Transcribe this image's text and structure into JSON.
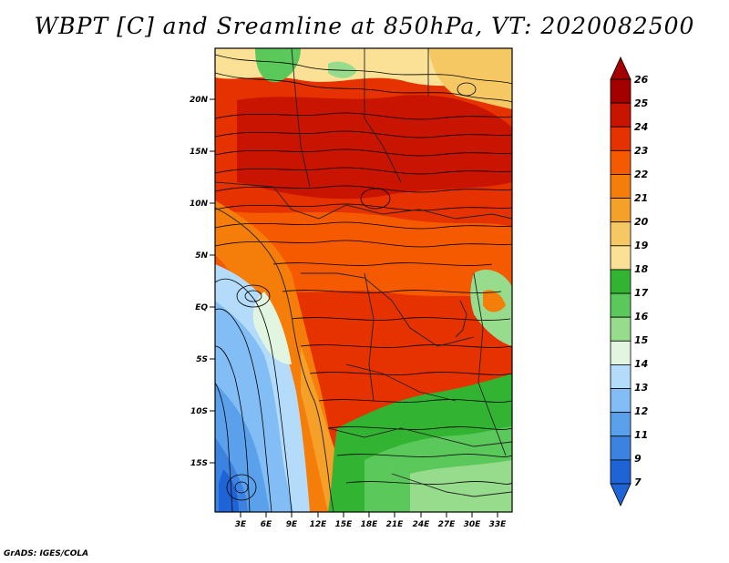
{
  "title": "WBPT [C] and Sreamline at 850hPa, VT: 2020082500",
  "footer": "GrADS: IGES/COLA",
  "map": {
    "lat_labels": [
      "20N",
      "15N",
      "10N",
      "5N",
      "EQ",
      "5S",
      "10S",
      "15S"
    ],
    "lon_labels": [
      "3E",
      "6E",
      "9E",
      "12E",
      "15E",
      "18E",
      "21E",
      "24E",
      "27E",
      "30E",
      "33E"
    ]
  },
  "colorbar": {
    "levels": [
      "26",
      "25",
      "24",
      "23",
      "22",
      "21",
      "20",
      "19",
      "18",
      "17",
      "16",
      "15",
      "14",
      "13",
      "12",
      "11",
      "9",
      "7"
    ],
    "colors": [
      "#a50000",
      "#c81400",
      "#e63200",
      "#f55a00",
      "#f57d0a",
      "#f5a028",
      "#f5c864",
      "#fae196",
      "#32b432",
      "#5ac85a",
      "#96dc8c",
      "#e1f5e1",
      "#b4dcfa",
      "#82bef5",
      "#5aa0eb",
      "#3c82e1",
      "#1e64d7"
    ]
  }
}
